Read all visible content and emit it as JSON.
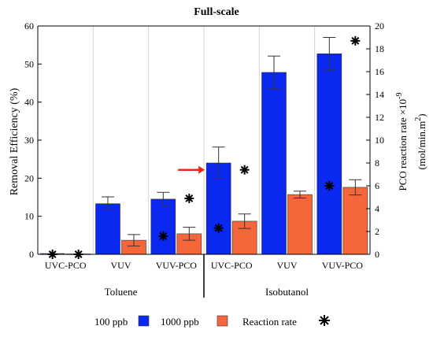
{
  "chart_data": {
    "type": "bar",
    "title": "Full-scale",
    "ylabel": "Removal Efficiency (%)",
    "y2label_line1": "PCO reaction rate ×10",
    "y2label_exponent": "-9",
    "y2label_line2": "(mol/min.m",
    "y2label_line2_exponent": "2",
    "y2label_line2_end": ")",
    "ylim": [
      0,
      60
    ],
    "y2lim": [
      0,
      20
    ],
    "yticks": [
      0,
      10,
      20,
      30,
      40,
      50,
      60
    ],
    "y2ticks": [
      0,
      2,
      4,
      6,
      8,
      10,
      12,
      14,
      16,
      18,
      20
    ],
    "categories": [
      "UVC-PCO",
      "VUV",
      "VUV-PCO",
      "UVC-PCO",
      "VUV",
      "VUV-PCO"
    ],
    "groups": [
      {
        "label": "Toluene",
        "categories": [
          0,
          1,
          2
        ]
      },
      {
        "label": "Isobutanol",
        "categories": [
          3,
          4,
          5
        ]
      }
    ],
    "series": [
      {
        "name": "100 ppb",
        "color": "#0a28f0",
        "values": [
          0.2,
          13.3,
          14.5,
          24.0,
          47.8,
          52.7
        ],
        "errors": [
          0,
          1.8,
          1.8,
          4.2,
          4.3,
          4.3
        ]
      },
      {
        "name": "1000 ppb",
        "color": "#f5663a",
        "values": [
          0.1,
          3.7,
          5.4,
          8.7,
          15.7,
          17.6
        ],
        "errors": [
          0,
          1.5,
          1.7,
          1.9,
          0.9,
          2.0
        ]
      }
    ],
    "reaction_rate": {
      "name": "Reaction rate",
      "axis": "right",
      "points": [
        {
          "category": 0,
          "series": "100 ppb",
          "value": 0.0
        },
        {
          "category": 0,
          "series": "1000 ppb",
          "value": 0.0
        },
        {
          "category": 2,
          "series": "100 ppb",
          "value": 1.6
        },
        {
          "category": 2,
          "series": "1000 ppb",
          "value": 4.9
        },
        {
          "category": 3,
          "series": "100 ppb",
          "value": 2.3
        },
        {
          "category": 3,
          "series": "1000 ppb",
          "value": 7.4
        },
        {
          "category": 5,
          "series": "100 ppb",
          "value": 6.0
        },
        {
          "category": 5,
          "series": "1000 ppb",
          "value": 18.7
        }
      ]
    },
    "annotation": {
      "type": "arrow",
      "color": "#e8261c",
      "points_to_category": 3
    },
    "grid": "vertical",
    "legend_position": "bottom"
  }
}
